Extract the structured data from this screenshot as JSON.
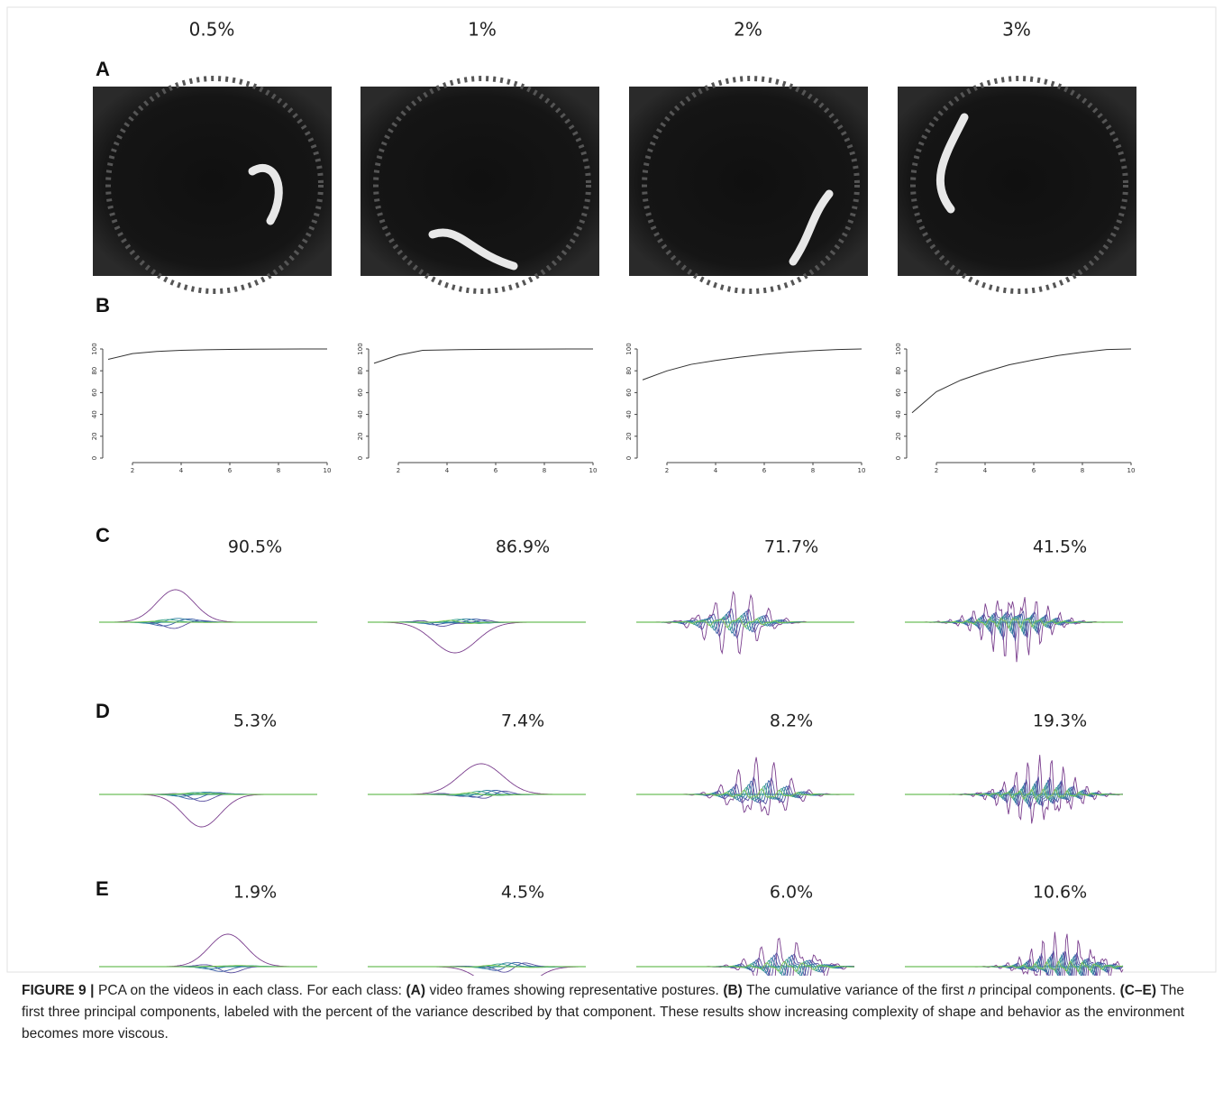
{
  "column_headers": [
    "0.5%",
    "1%",
    "2%",
    "3%"
  ],
  "panel_labels": [
    "A",
    "B",
    "C",
    "D",
    "E"
  ],
  "component_percents": [
    [
      "90.5%",
      "86.9%",
      "71.7%",
      "41.5%"
    ],
    [
      "5.3%",
      "7.4%",
      "8.2%",
      "19.3%"
    ],
    [
      "1.9%",
      "4.5%",
      "6.0%",
      "10.6%"
    ]
  ],
  "chart_data": [
    {
      "type": "line",
      "x": [
        1,
        2,
        3,
        4,
        5,
        6,
        7,
        8,
        9,
        10
      ],
      "values": [
        90.5,
        95.8,
        97.7,
        98.8,
        99.3,
        99.6,
        99.8,
        99.9,
        100,
        100
      ],
      "color": "#333333",
      "xlim": [
        1,
        10
      ],
      "ylim": [
        0,
        100
      ],
      "xticks": [
        2,
        4,
        6,
        8,
        10
      ],
      "yticks": [
        0,
        20,
        40,
        60,
        80,
        100
      ]
    },
    {
      "type": "line",
      "x": [
        1,
        2,
        3,
        4,
        5,
        6,
        7,
        8,
        9,
        10
      ],
      "values": [
        86.9,
        94.3,
        98.8,
        99.2,
        99.5,
        99.7,
        99.8,
        99.9,
        100,
        100
      ],
      "color": "#333333",
      "xlim": [
        1,
        10
      ],
      "ylim": [
        0,
        100
      ],
      "xticks": [
        2,
        4,
        6,
        8,
        10
      ],
      "yticks": [
        0,
        20,
        40,
        60,
        80,
        100
      ]
    },
    {
      "type": "line",
      "x": [
        1,
        2,
        3,
        4,
        5,
        6,
        7,
        8,
        9,
        10
      ],
      "values": [
        71.7,
        79.9,
        85.9,
        89.5,
        92.5,
        95,
        97,
        98.5,
        99.5,
        100
      ],
      "color": "#333333",
      "xlim": [
        1,
        10
      ],
      "ylim": [
        0,
        100
      ],
      "xticks": [
        2,
        4,
        6,
        8,
        10
      ],
      "yticks": [
        0,
        20,
        40,
        60,
        80,
        100
      ]
    },
    {
      "type": "line",
      "x": [
        1,
        2,
        3,
        4,
        5,
        6,
        7,
        8,
        9,
        10
      ],
      "values": [
        41.5,
        60.8,
        71.4,
        79,
        85.5,
        90,
        94,
        97,
        99.5,
        100
      ],
      "color": "#333333",
      "xlim": [
        1,
        10
      ],
      "ylim": [
        0,
        100
      ],
      "xticks": [
        2,
        4,
        6,
        8,
        10
      ],
      "yticks": [
        0,
        20,
        40,
        60,
        80,
        100
      ]
    }
  ],
  "caption": {
    "label": "FIGURE 9 |",
    "parts": [
      " PCA on the videos in each class. For each class: ",
      "(A)",
      " video frames showing representative postures. ",
      "(B)",
      " The cumulative variance of the first ",
      "n",
      " principal components. ",
      "(C–E)",
      " The first three principal components, labeled with the percent of the variance described by that component. These results show increasing complexity of shape and behavior as the environment becomes more viscous."
    ]
  }
}
